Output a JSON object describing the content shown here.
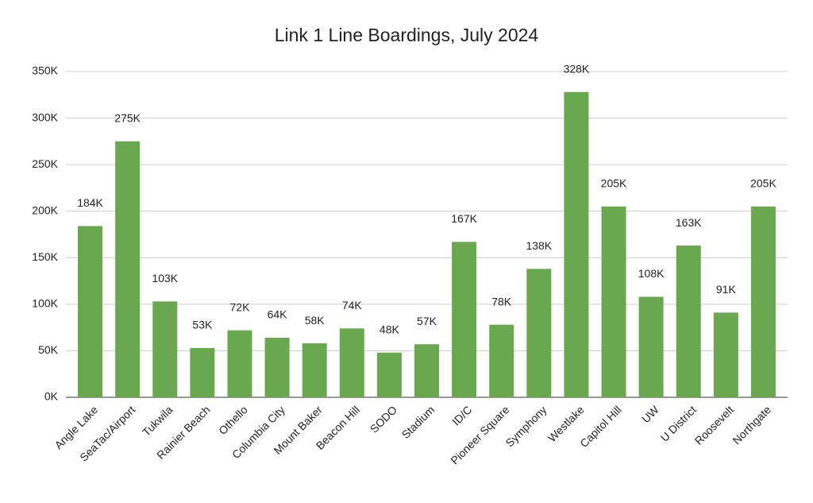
{
  "chart_data": {
    "type": "bar",
    "title": "Link 1 Line Boardings, July 2024",
    "categories": [
      "Angle Lake",
      "SeaTac/Airport",
      "Tukwila",
      "Rainier Beach",
      "Othello",
      "Columbia City",
      "Mount Baker",
      "Beacon Hill",
      "SODO",
      "Stadium",
      "ID/C",
      "Pioneer Square",
      "Symphony",
      "Westlake",
      "Capitol Hill",
      "UW",
      "U District",
      "Roosevelt",
      "Northgate"
    ],
    "values": [
      184000,
      275000,
      103000,
      53000,
      72000,
      64000,
      58000,
      74000,
      48000,
      57000,
      167000,
      78000,
      138000,
      328000,
      205000,
      108000,
      163000,
      91000,
      205000
    ],
    "value_labels": [
      "184K",
      "275K",
      "103K",
      "53K",
      "72K",
      "64K",
      "58K",
      "74K",
      "48K",
      "57K",
      "167K",
      "78K",
      "138K",
      "328K",
      "205K",
      "108K",
      "163K",
      "91K",
      "205K"
    ],
    "color": "#6aa84f",
    "ylim": [
      0,
      350000
    ],
    "yticks": [
      {
        "value": 0,
        "label": "0K"
      },
      {
        "value": 50000,
        "label": "50K"
      },
      {
        "value": 100000,
        "label": "100K"
      },
      {
        "value": 150000,
        "label": "150K"
      },
      {
        "value": 200000,
        "label": "200K"
      },
      {
        "value": 250000,
        "label": "250K"
      },
      {
        "value": 300000,
        "label": "300K"
      },
      {
        "value": 350000,
        "label": "350K"
      }
    ],
    "grid": true
  }
}
